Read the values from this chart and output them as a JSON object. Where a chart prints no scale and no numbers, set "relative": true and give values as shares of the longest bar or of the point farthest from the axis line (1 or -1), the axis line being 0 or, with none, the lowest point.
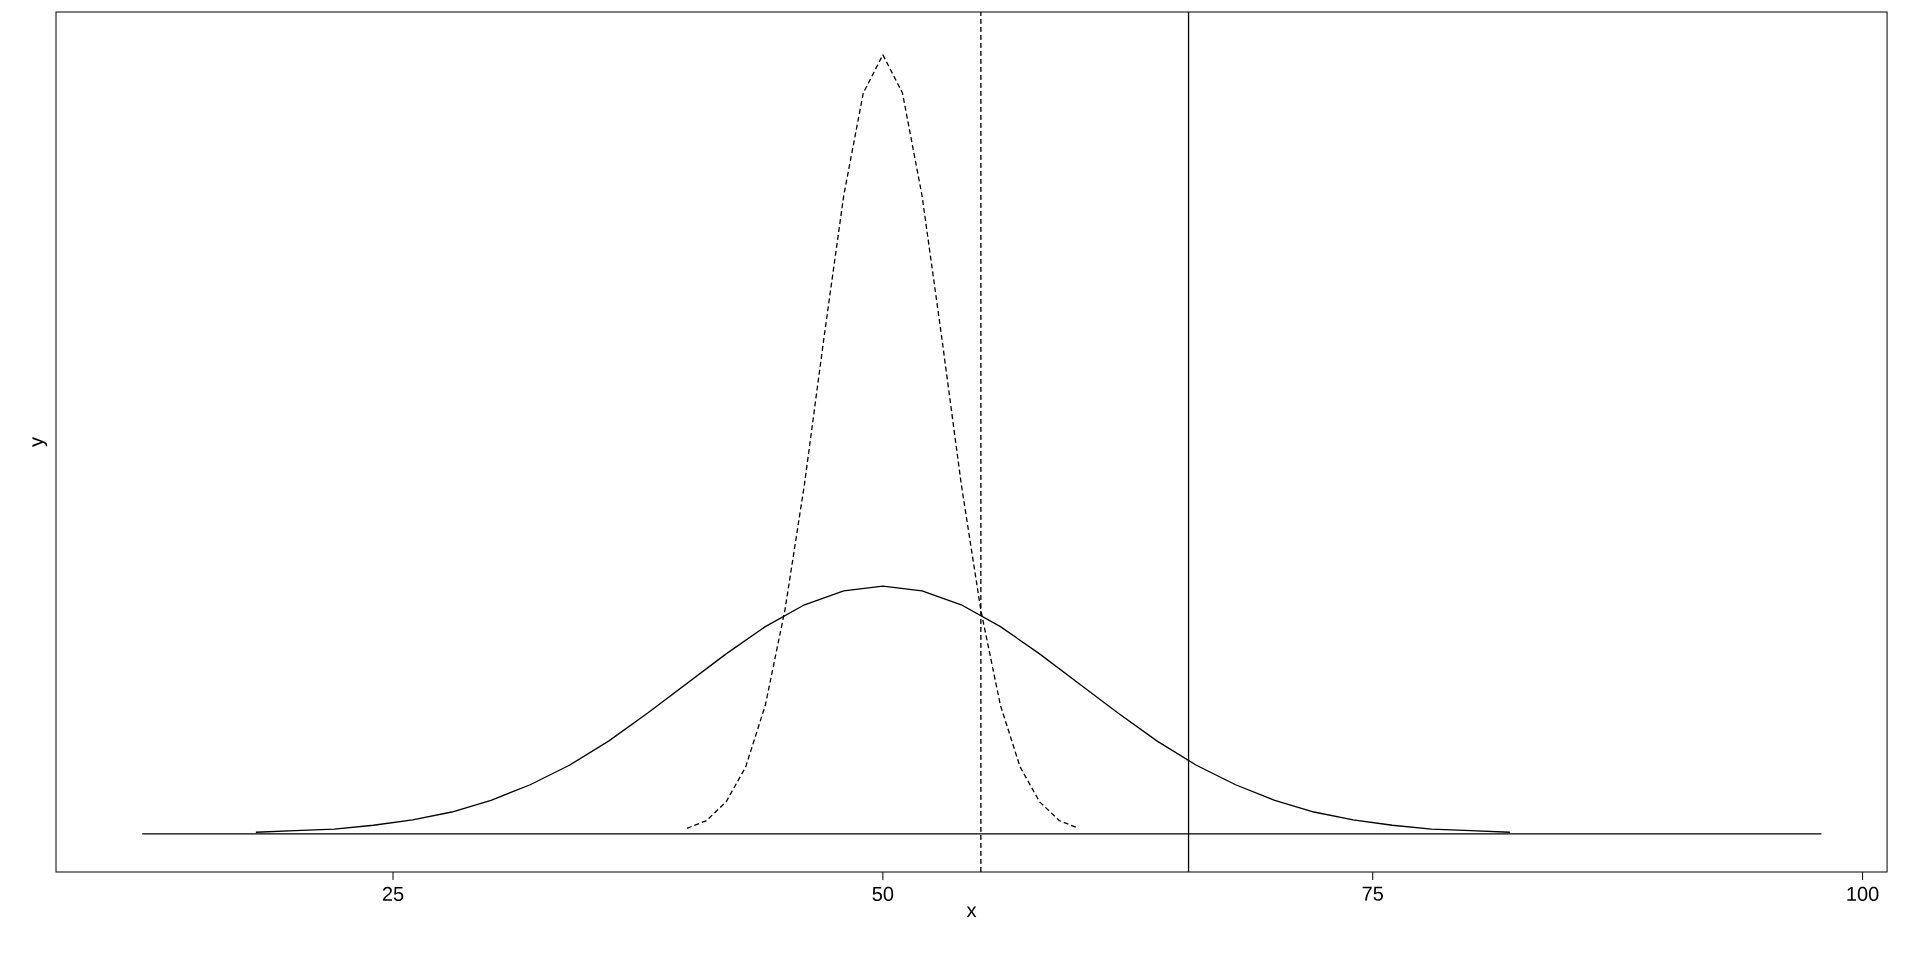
{
  "chart_data": {
    "type": "line",
    "relative": true,
    "xlabel": "x",
    "ylabel": "y",
    "xlim": [
      7.8,
      101.25
    ],
    "xticks": [
      25,
      50,
      75,
      100
    ],
    "marker": "none",
    "series": [
      {
        "color": "#000000",
        "line_style": "solid",
        "x": [
          12.2,
          97.9
        ],
        "values": [
          0,
          0
        ]
      },
      {
        "color": "#000000",
        "line_style": "solid",
        "x": [
          18,
          20,
          22,
          24,
          26,
          28,
          30,
          32,
          34,
          36,
          38,
          40,
          42,
          44,
          46,
          48,
          50,
          52,
          54,
          56,
          58,
          60,
          62,
          64,
          66,
          68,
          70,
          72,
          74,
          76,
          78,
          80,
          82
        ],
        "values": [
          0.002,
          0.004,
          0.006,
          0.011,
          0.018,
          0.028,
          0.043,
          0.063,
          0.088,
          0.119,
          0.155,
          0.193,
          0.231,
          0.266,
          0.294,
          0.312,
          0.318,
          0.312,
          0.294,
          0.266,
          0.231,
          0.193,
          0.155,
          0.119,
          0.088,
          0.063,
          0.043,
          0.028,
          0.018,
          0.011,
          0.006,
          0.004,
          0.002
        ]
      },
      {
        "color": "#000000",
        "line_style": "dashed",
        "x": [
          40,
          41,
          42,
          43,
          44,
          45,
          46,
          47,
          48,
          49,
          50,
          51,
          52,
          53,
          54,
          55,
          56,
          57,
          58,
          59,
          60
        ],
        "values": [
          0.007,
          0.017,
          0.041,
          0.086,
          0.165,
          0.287,
          0.449,
          0.638,
          0.819,
          0.951,
          1,
          0.951,
          0.819,
          0.638,
          0.449,
          0.287,
          0.165,
          0.086,
          0.041,
          0.017,
          0.007
        ]
      }
    ],
    "ref_lines": [
      {
        "axis": "x",
        "value": 55,
        "line_style": "dashed"
      },
      {
        "axis": "x",
        "value": 65.6,
        "line_style": "solid"
      }
    ]
  }
}
